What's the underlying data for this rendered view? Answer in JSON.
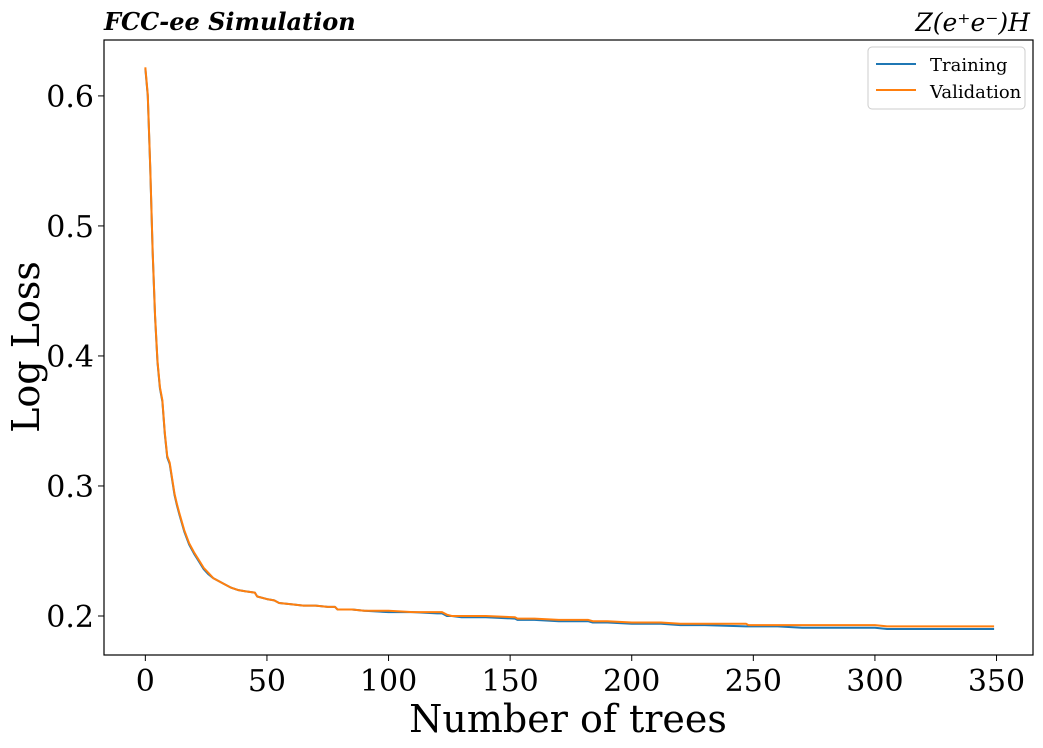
{
  "chart_data": {
    "type": "line",
    "title_left": "FCC-ee Simulation",
    "title_right": "Z(e⁺e⁻)H",
    "xlabel": "Number of trees",
    "ylabel": "Log Loss",
    "xlim": [
      -17,
      365
    ],
    "ylim": [
      0.17,
      0.643
    ],
    "xticks": [
      0,
      50,
      100,
      150,
      200,
      250,
      300,
      350
    ],
    "yticks": [
      0.2,
      0.3,
      0.4,
      0.5,
      0.6
    ],
    "ytick_labels": [
      "0.2",
      "0.3",
      "0.4",
      "0.5",
      "0.6"
    ],
    "grid": false,
    "legend_position": "top-right",
    "series": [
      {
        "name": "Training",
        "color": "#1f77b4",
        "x": [
          0,
          1,
          2,
          3,
          4,
          5,
          6,
          7,
          8,
          9,
          10,
          11,
          12,
          13,
          14,
          16,
          18,
          20,
          22,
          24,
          26,
          28,
          30,
          32,
          35,
          38,
          41,
          45,
          46,
          50,
          53,
          55,
          60,
          65,
          70,
          75,
          78,
          79,
          85,
          90,
          100,
          110,
          120,
          122,
          124,
          126,
          130,
          140,
          152,
          153,
          160,
          170,
          182,
          184,
          190,
          200,
          211,
          212,
          220,
          230,
          247,
          248,
          260,
          270,
          280,
          290,
          300,
          305,
          310,
          320,
          330,
          340,
          349
        ],
        "y": [
          0.621,
          0.6,
          0.545,
          0.48,
          0.43,
          0.395,
          0.375,
          0.365,
          0.34,
          0.322,
          0.317,
          0.305,
          0.293,
          0.285,
          0.278,
          0.265,
          0.255,
          0.248,
          0.242,
          0.236,
          0.232,
          0.229,
          0.227,
          0.225,
          0.222,
          0.22,
          0.219,
          0.218,
          0.215,
          0.213,
          0.212,
          0.21,
          0.209,
          0.208,
          0.208,
          0.207,
          0.207,
          0.205,
          0.205,
          0.204,
          0.203,
          0.203,
          0.202,
          0.202,
          0.2,
          0.2,
          0.199,
          0.199,
          0.198,
          0.197,
          0.197,
          0.196,
          0.196,
          0.195,
          0.195,
          0.194,
          0.194,
          0.194,
          0.193,
          0.193,
          0.192,
          0.192,
          0.192,
          0.191,
          0.191,
          0.191,
          0.191,
          0.19,
          0.19,
          0.19,
          0.19,
          0.19,
          0.19
        ]
      },
      {
        "name": "Validation",
        "color": "#ff7f0e",
        "x": [
          0,
          1,
          2,
          3,
          4,
          5,
          6,
          7,
          8,
          9,
          10,
          11,
          12,
          13,
          14,
          16,
          18,
          20,
          22,
          24,
          26,
          28,
          30,
          32,
          35,
          38,
          41,
          45,
          46,
          50,
          53,
          55,
          60,
          65,
          70,
          75,
          78,
          79,
          85,
          90,
          100,
          110,
          120,
          122,
          124,
          126,
          130,
          140,
          152,
          153,
          160,
          170,
          182,
          184,
          190,
          200,
          211,
          212,
          220,
          230,
          247,
          248,
          260,
          270,
          280,
          290,
          300,
          305,
          310,
          320,
          330,
          340,
          349
        ],
        "y": [
          0.622,
          0.601,
          0.546,
          0.481,
          0.431,
          0.396,
          0.376,
          0.366,
          0.341,
          0.323,
          0.318,
          0.306,
          0.294,
          0.286,
          0.279,
          0.266,
          0.256,
          0.249,
          0.243,
          0.237,
          0.233,
          0.229,
          0.227,
          0.225,
          0.222,
          0.22,
          0.219,
          0.218,
          0.215,
          0.213,
          0.212,
          0.21,
          0.209,
          0.208,
          0.208,
          0.207,
          0.207,
          0.205,
          0.205,
          0.204,
          0.204,
          0.203,
          0.203,
          0.203,
          0.201,
          0.2,
          0.2,
          0.2,
          0.199,
          0.198,
          0.198,
          0.197,
          0.197,
          0.196,
          0.196,
          0.195,
          0.195,
          0.195,
          0.194,
          0.194,
          0.194,
          0.193,
          0.193,
          0.193,
          0.193,
          0.193,
          0.193,
          0.192,
          0.192,
          0.192,
          0.192,
          0.192,
          0.192
        ]
      }
    ]
  }
}
